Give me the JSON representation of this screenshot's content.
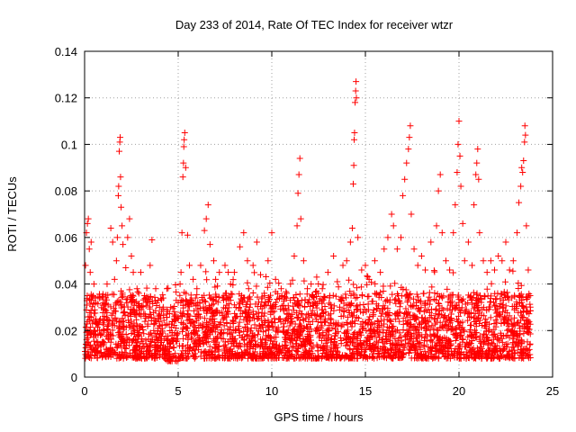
{
  "chart_data": {
    "type": "scatter",
    "title": "Day 233 of 2014, Rate Of TEC Index for receiver wtzr",
    "xlabel": "GPS time / hours",
    "ylabel": "ROTI / TECUs",
    "xlim": [
      0,
      25
    ],
    "ylim": [
      0,
      0.14
    ],
    "xticks": [
      0,
      5,
      10,
      15,
      20,
      25
    ],
    "xtick_labels": [
      "0",
      "5",
      "10",
      "15",
      "20",
      "25"
    ],
    "yticks": [
      0,
      0.02,
      0.04,
      0.06,
      0.08,
      0.1,
      0.12,
      0.14
    ],
    "ytick_labels": [
      "0",
      "0.02",
      "0.04",
      "0.06",
      "0.08",
      "0.1",
      "0.12",
      "0.14"
    ],
    "grid": true,
    "marker": "+",
    "color": "#ff0000",
    "series": [
      {
        "name": "ROTI",
        "points": [
          [
            0.05,
            0.048
          ],
          [
            0.1,
            0.062
          ],
          [
            0.15,
            0.066
          ],
          [
            0.2,
            0.068
          ],
          [
            0.25,
            0.055
          ],
          [
            0.3,
            0.045
          ],
          [
            0.35,
            0.058
          ],
          [
            0.5,
            0.04
          ],
          [
            0.6,
            0.032
          ],
          [
            0.8,
            0.034
          ],
          [
            1.0,
            0.032
          ],
          [
            1.2,
            0.04
          ],
          [
            1.4,
            0.064
          ],
          [
            1.5,
            0.058
          ],
          [
            1.6,
            0.042
          ],
          [
            1.7,
            0.05
          ],
          [
            1.75,
            0.06
          ],
          [
            1.8,
            0.078
          ],
          [
            1.82,
            0.082
          ],
          [
            1.85,
            0.097
          ],
          [
            1.88,
            0.101
          ],
          [
            1.9,
            0.103
          ],
          [
            1.92,
            0.086
          ],
          [
            1.95,
            0.073
          ],
          [
            2.0,
            0.065
          ],
          [
            2.05,
            0.057
          ],
          [
            2.2,
            0.047
          ],
          [
            2.3,
            0.06
          ],
          [
            2.4,
            0.068
          ],
          [
            2.5,
            0.052
          ],
          [
            2.6,
            0.045
          ],
          [
            2.8,
            0.038
          ],
          [
            3.0,
            0.045
          ],
          [
            3.2,
            0.035
          ],
          [
            3.5,
            0.048
          ],
          [
            3.6,
            0.059
          ],
          [
            3.8,
            0.038
          ],
          [
            4.0,
            0.03
          ],
          [
            4.2,
            0.034
          ],
          [
            4.4,
            0.038
          ],
          [
            4.6,
            0.03
          ],
          [
            4.8,
            0.028
          ],
          [
            5.0,
            0.032
          ],
          [
            5.1,
            0.04
          ],
          [
            5.15,
            0.045
          ],
          [
            5.2,
            0.062
          ],
          [
            5.25,
            0.086
          ],
          [
            5.28,
            0.092
          ],
          [
            5.3,
            0.099
          ],
          [
            5.32,
            0.102
          ],
          [
            5.35,
            0.105
          ],
          [
            5.4,
            0.09
          ],
          [
            5.5,
            0.061
          ],
          [
            5.6,
            0.048
          ],
          [
            5.8,
            0.042
          ],
          [
            6.0,
            0.038
          ],
          [
            6.2,
            0.048
          ],
          [
            6.4,
            0.063
          ],
          [
            6.5,
            0.068
          ],
          [
            6.6,
            0.074
          ],
          [
            6.7,
            0.057
          ],
          [
            6.9,
            0.05
          ],
          [
            7.0,
            0.042
          ],
          [
            7.2,
            0.045
          ],
          [
            7.5,
            0.048
          ],
          [
            7.8,
            0.04
          ],
          [
            8.0,
            0.045
          ],
          [
            8.3,
            0.056
          ],
          [
            8.5,
            0.062
          ],
          [
            8.7,
            0.05
          ],
          [
            9.0,
            0.048
          ],
          [
            9.2,
            0.058
          ],
          [
            9.4,
            0.044
          ],
          [
            9.6,
            0.036
          ],
          [
            9.8,
            0.05
          ],
          [
            10.0,
            0.062
          ],
          [
            10.2,
            0.042
          ],
          [
            10.5,
            0.038
          ],
          [
            10.8,
            0.036
          ],
          [
            11.0,
            0.04
          ],
          [
            11.2,
            0.052
          ],
          [
            11.35,
            0.065
          ],
          [
            11.4,
            0.079
          ],
          [
            11.45,
            0.087
          ],
          [
            11.5,
            0.094
          ],
          [
            11.55,
            0.068
          ],
          [
            11.7,
            0.05
          ],
          [
            11.9,
            0.038
          ],
          [
            12.1,
            0.04
          ],
          [
            12.4,
            0.043
          ],
          [
            12.7,
            0.038
          ],
          [
            13.0,
            0.045
          ],
          [
            13.3,
            0.052
          ],
          [
            13.5,
            0.041
          ],
          [
            13.8,
            0.048
          ],
          [
            14.0,
            0.05
          ],
          [
            14.2,
            0.058
          ],
          [
            14.3,
            0.064
          ],
          [
            14.35,
            0.083
          ],
          [
            14.38,
            0.091
          ],
          [
            14.4,
            0.102
          ],
          [
            14.42,
            0.105
          ],
          [
            14.45,
            0.118
          ],
          [
            14.48,
            0.123
          ],
          [
            14.5,
            0.127
          ],
          [
            14.52,
            0.12
          ],
          [
            14.6,
            0.06
          ],
          [
            14.8,
            0.046
          ],
          [
            15.0,
            0.048
          ],
          [
            15.2,
            0.042
          ],
          [
            15.5,
            0.05
          ],
          [
            15.8,
            0.045
          ],
          [
            16.0,
            0.055
          ],
          [
            16.2,
            0.06
          ],
          [
            16.4,
            0.07
          ],
          [
            16.5,
            0.065
          ],
          [
            16.7,
            0.055
          ],
          [
            16.9,
            0.06
          ],
          [
            17.0,
            0.078
          ],
          [
            17.1,
            0.085
          ],
          [
            17.2,
            0.092
          ],
          [
            17.3,
            0.098
          ],
          [
            17.35,
            0.103
          ],
          [
            17.4,
            0.108
          ],
          [
            17.45,
            0.07
          ],
          [
            17.6,
            0.055
          ],
          [
            17.8,
            0.048
          ],
          [
            18.0,
            0.052
          ],
          [
            18.2,
            0.046
          ],
          [
            18.5,
            0.058
          ],
          [
            18.8,
            0.065
          ],
          [
            18.9,
            0.08
          ],
          [
            19.0,
            0.087
          ],
          [
            19.1,
            0.062
          ],
          [
            19.3,
            0.05
          ],
          [
            19.5,
            0.046
          ],
          [
            19.7,
            0.062
          ],
          [
            19.8,
            0.074
          ],
          [
            19.9,
            0.088
          ],
          [
            19.95,
            0.1
          ],
          [
            20.0,
            0.11
          ],
          [
            20.05,
            0.095
          ],
          [
            20.1,
            0.082
          ],
          [
            20.2,
            0.066
          ],
          [
            20.3,
            0.05
          ],
          [
            20.5,
            0.058
          ],
          [
            20.7,
            0.048
          ],
          [
            20.8,
            0.074
          ],
          [
            20.9,
            0.087
          ],
          [
            20.95,
            0.092
          ],
          [
            21.0,
            0.098
          ],
          [
            21.05,
            0.085
          ],
          [
            21.1,
            0.062
          ],
          [
            21.3,
            0.05
          ],
          [
            21.5,
            0.045
          ],
          [
            21.7,
            0.05
          ],
          [
            21.9,
            0.046
          ],
          [
            22.1,
            0.052
          ],
          [
            22.3,
            0.05
          ],
          [
            22.5,
            0.058
          ],
          [
            22.7,
            0.046
          ],
          [
            22.9,
            0.05
          ],
          [
            23.1,
            0.062
          ],
          [
            23.2,
            0.075
          ],
          [
            23.3,
            0.082
          ],
          [
            23.35,
            0.09
          ],
          [
            23.4,
            0.088
          ],
          [
            23.45,
            0.093
          ],
          [
            23.5,
            0.101
          ],
          [
            23.52,
            0.108
          ],
          [
            23.55,
            0.104
          ],
          [
            23.6,
            0.065
          ],
          [
            23.7,
            0.046
          ],
          [
            23.8,
            0.035
          ]
        ]
      }
    ]
  }
}
